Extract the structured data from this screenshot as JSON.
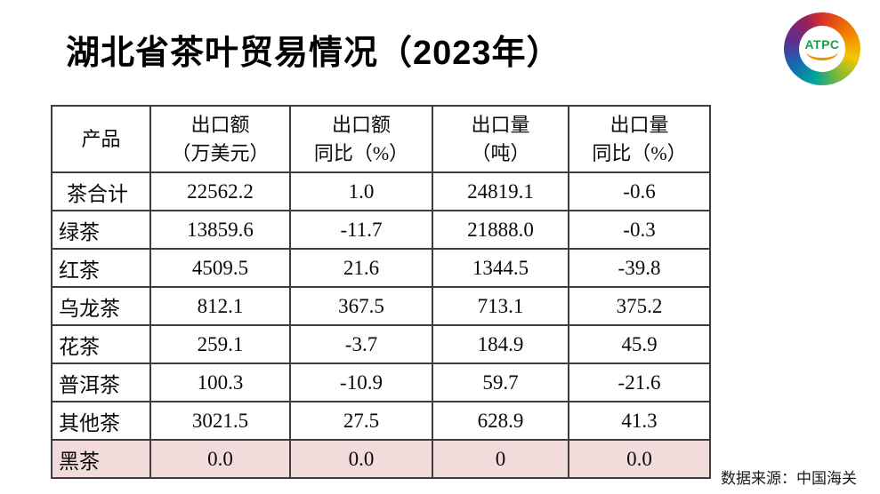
{
  "header": {
    "title": "湖北省茶叶贸易情况（2023年）",
    "logo_text": "ATPC"
  },
  "table": {
    "columns": [
      {
        "line1": "产品",
        "line2": ""
      },
      {
        "line1": "出口额",
        "line2": "（万美元）"
      },
      {
        "line1": "出口额",
        "line2": "同比（%）"
      },
      {
        "line1": "出口量",
        "line2": "（吨）"
      },
      {
        "line1": "出口量",
        "line2": "同比（%）"
      }
    ],
    "rows": [
      {
        "product": "茶合计",
        "values": [
          "22562.2",
          "1.0",
          "24819.1",
          "-0.6"
        ],
        "highlight": false
      },
      {
        "product": "绿茶",
        "values": [
          "13859.6",
          "-11.7",
          "21888.0",
          "-0.3"
        ],
        "highlight": false
      },
      {
        "product": "红茶",
        "values": [
          "4509.5",
          "21.6",
          "1344.5",
          "-39.8"
        ],
        "highlight": false
      },
      {
        "product": "乌龙茶",
        "values": [
          "812.1",
          "367.5",
          "713.1",
          "375.2"
        ],
        "highlight": false
      },
      {
        "product": "花茶",
        "values": [
          "259.1",
          "-3.7",
          "184.9",
          "45.9"
        ],
        "highlight": false
      },
      {
        "product": "普洱茶",
        "values": [
          "100.3",
          "-10.9",
          "59.7",
          "-21.6"
        ],
        "highlight": false
      },
      {
        "product": "其他茶",
        "values": [
          "3021.5",
          "27.5",
          "628.9",
          "41.3"
        ],
        "highlight": false
      },
      {
        "product": "黑茶",
        "values": [
          "0.0",
          "0.0",
          "0",
          "0.0"
        ],
        "highlight": true
      }
    ]
  },
  "footer": {
    "source": "数据来源：中国海关"
  },
  "colors": {
    "highlight_row": "#f2dcdb",
    "border": "#3d3d3d",
    "logo_text": "#1e9e4b",
    "logo_underline": "#f29100"
  }
}
